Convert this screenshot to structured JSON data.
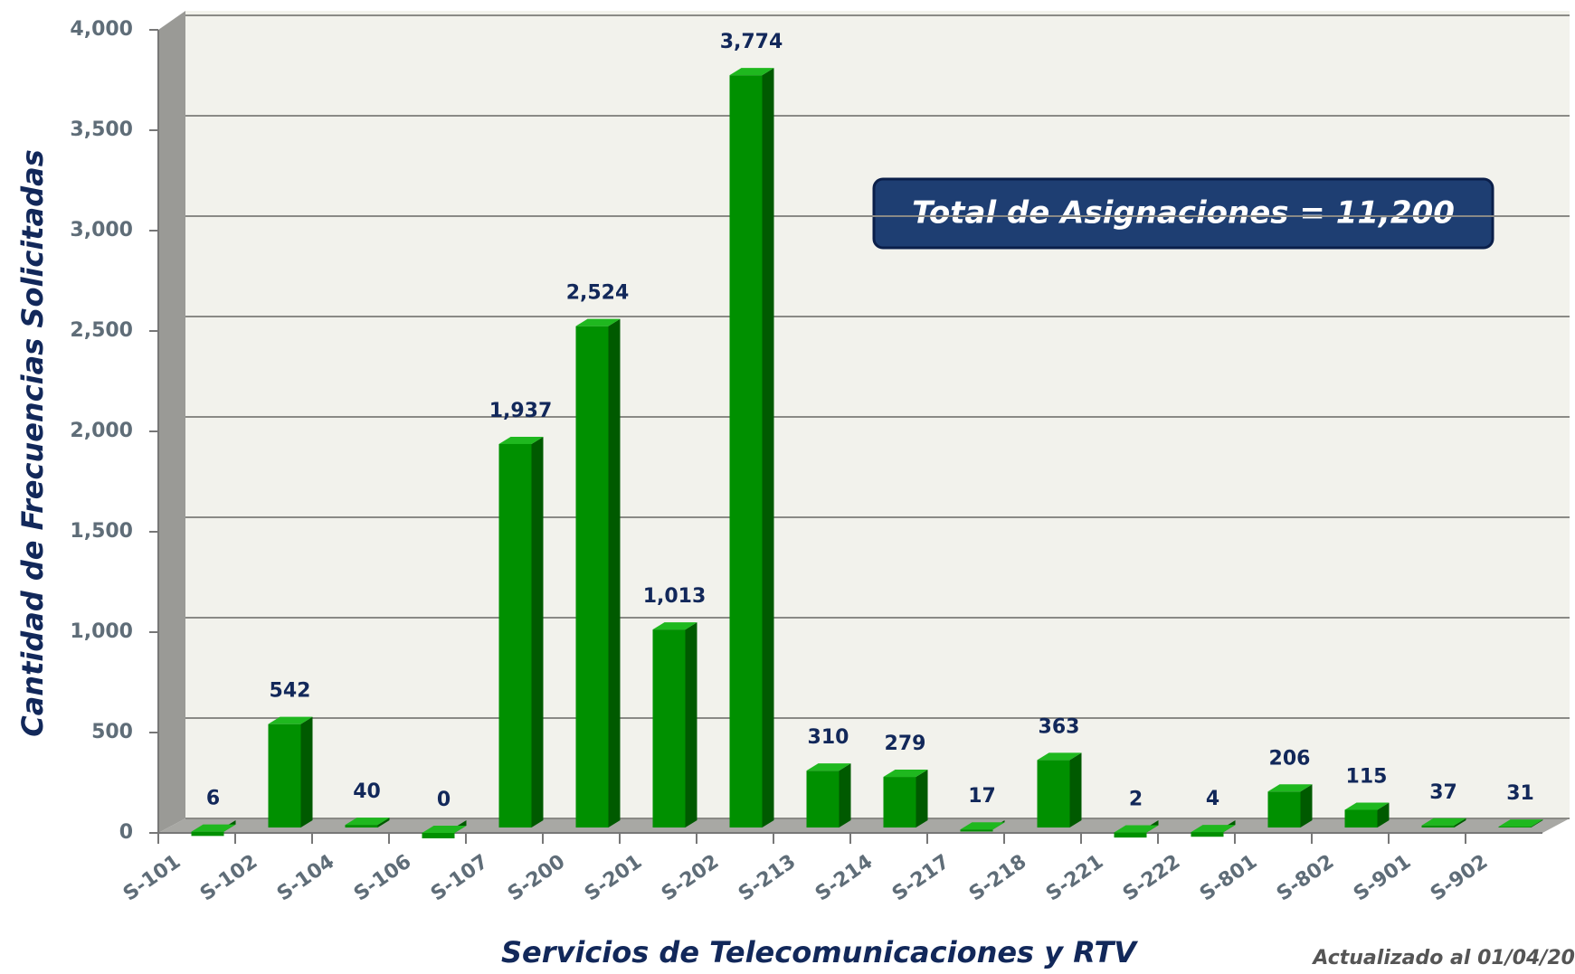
{
  "chart_data": {
    "type": "bar",
    "x_label": "Servicios de Telecomunicaciones  y RTV",
    "y_label": "Cantidad de Frecuencias Solicitadas",
    "annotations": [
      "Total de Asignaciones = 11,200",
      "Actualizado al 01/04/20"
    ],
    "categories": [
      "S-101",
      "S-102",
      "S-104",
      "S-106",
      "S-107",
      "S-200",
      "S-201",
      "S-202",
      "S-213",
      "S-214",
      "S-217",
      "S-218",
      "S-221",
      "S-222",
      "S-801",
      "S-802",
      "S-901",
      "S-902"
    ],
    "values": [
      6,
      542,
      40,
      0,
      1937,
      2524,
      1013,
      3774,
      310,
      279,
      17,
      363,
      2,
      4,
      206,
      115,
      37,
      31
    ],
    "value_labels": [
      "6",
      "542",
      "40",
      "0",
      "1,937",
      "2,524",
      "1,013",
      "3,774",
      "310",
      "279",
      "17",
      "363",
      "2",
      "4",
      "206",
      "115",
      "37",
      "31"
    ],
    "color": "#009000",
    "ylim": [
      0,
      4000
    ],
    "yticks": [
      0,
      500,
      {
        "value": 1000,
        "label": "1,000"
      },
      {
        "value": 1500,
        "label": "1,500"
      },
      {
        "value": 2000,
        "label": "2,000"
      },
      {
        "value": 2500,
        "label": "2,500"
      },
      {
        "value": 3000,
        "label": "3,000"
      },
      {
        "value": 3500,
        "label": "3,500"
      },
      {
        "value": 4000,
        "label": "4,000"
      }
    ],
    "grid": true
  }
}
